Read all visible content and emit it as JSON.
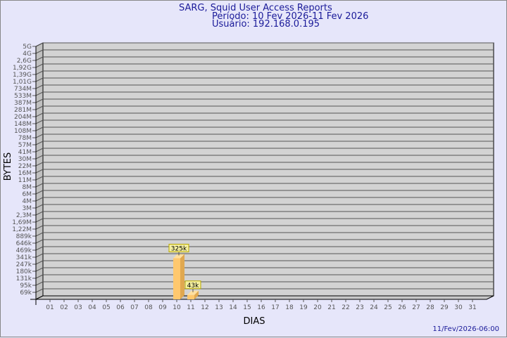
{
  "header": {
    "title": "SARG, Squid User Access Reports",
    "period": "Período: 10 Fev 2026-11 Fev 2026",
    "user": "Usuário: 192.168.0.195"
  },
  "footer": {
    "timestamp": "11/Fev/2026-06:00"
  },
  "colors": {
    "background": "#e6e6fa",
    "plot_wall": "#d3d3d3",
    "bar": "#ffc86e",
    "bar_side": "#e0a850",
    "label_box": "#f5f0a0",
    "title": "#1a1a99"
  },
  "chart_data": {
    "type": "bar",
    "xlabel": "DIAS",
    "ylabel": "BYTES",
    "categories": [
      "01",
      "02",
      "03",
      "04",
      "05",
      "06",
      "07",
      "08",
      "09",
      "10",
      "11",
      "12",
      "13",
      "14",
      "15",
      "16",
      "17",
      "18",
      "19",
      "20",
      "21",
      "22",
      "23",
      "24",
      "25",
      "26",
      "27",
      "28",
      "29",
      "30",
      "31"
    ],
    "series": [
      {
        "values": [
          0,
          0,
          0,
          0,
          0,
          0,
          0,
          0,
          0,
          325000,
          43000,
          0,
          0,
          0,
          0,
          0,
          0,
          0,
          0,
          0,
          0,
          0,
          0,
          0,
          0,
          0,
          0,
          0,
          0,
          0,
          0
        ]
      }
    ],
    "data_labels": {
      "10": "325k",
      "11": "43k"
    },
    "y_ticks": [
      {
        "label": "69k",
        "value": 69000
      },
      {
        "label": "95k",
        "value": 95000
      },
      {
        "label": "131k",
        "value": 131000
      },
      {
        "label": "180k",
        "value": 180000
      },
      {
        "label": "247k",
        "value": 247000
      },
      {
        "label": "341k",
        "value": 341000
      },
      {
        "label": "469k",
        "value": 469000
      },
      {
        "label": "646k",
        "value": 646000
      },
      {
        "label": "889k",
        "value": 889000
      },
      {
        "label": "1,22M",
        "value": 1220000
      },
      {
        "label": "1,69M",
        "value": 1690000
      },
      {
        "label": "2,3M",
        "value": 2300000
      },
      {
        "label": "3M",
        "value": 3000000
      },
      {
        "label": "4M",
        "value": 4000000
      },
      {
        "label": "6M",
        "value": 6000000
      },
      {
        "label": "8M",
        "value": 8000000
      },
      {
        "label": "11M",
        "value": 11000000
      },
      {
        "label": "16M",
        "value": 16000000
      },
      {
        "label": "22M",
        "value": 22000000
      },
      {
        "label": "30M",
        "value": 30000000
      },
      {
        "label": "41M",
        "value": 41000000
      },
      {
        "label": "57M",
        "value": 57000000
      },
      {
        "label": "78M",
        "value": 78000000
      },
      {
        "label": "108M",
        "value": 108000000
      },
      {
        "label": "148M",
        "value": 148000000
      },
      {
        "label": "204M",
        "value": 204000000
      },
      {
        "label": "281M",
        "value": 281000000
      },
      {
        "label": "387M",
        "value": 387000000
      },
      {
        "label": "533M",
        "value": 533000000
      },
      {
        "label": "734M",
        "value": 734000000
      },
      {
        "label": "1,01G",
        "value": 1010000000
      },
      {
        "label": "1,39G",
        "value": 1390000000
      },
      {
        "label": "1,92G",
        "value": 1920000000
      },
      {
        "label": "2,6G",
        "value": 2600000000
      },
      {
        "label": "4G",
        "value": 4000000000
      },
      {
        "label": "5G",
        "value": 5000000000
      }
    ],
    "grid": true,
    "legend": "none"
  }
}
